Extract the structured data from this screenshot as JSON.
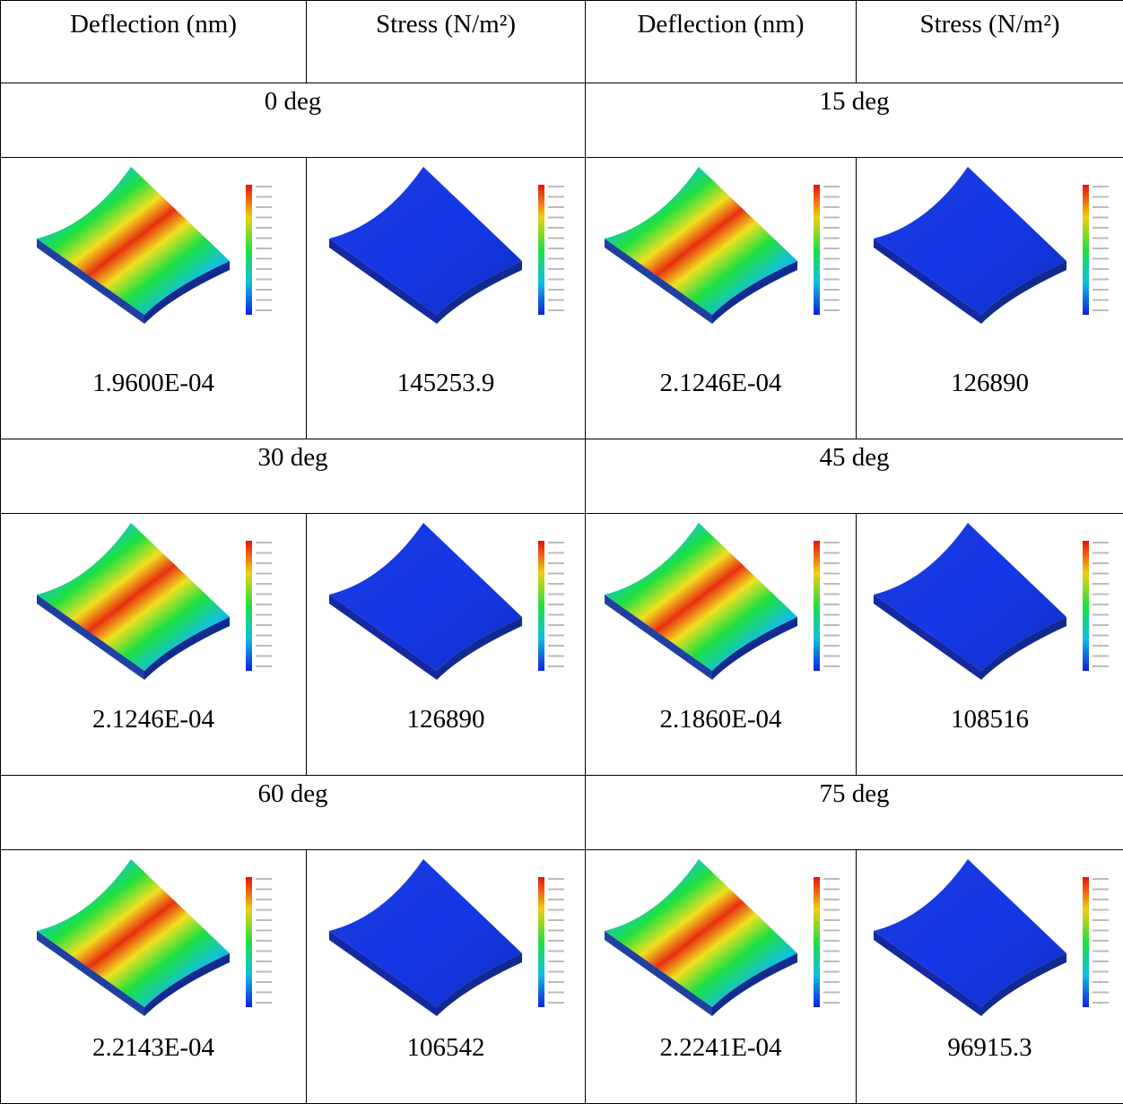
{
  "header": [
    "Deflection  (nm)",
    "Stress (N/m²)",
    "Deflection  (nm)",
    "Stress (N/m²)"
  ],
  "sections": [
    {
      "angles": [
        "0 deg",
        "15 deg"
      ],
      "values": [
        "1.9600E-04",
        "145253.9",
        "2.1246E-04",
        "126890"
      ]
    },
    {
      "angles": [
        "30 deg",
        "45 deg"
      ],
      "values": [
        "2.1246E-04",
        "126890",
        "2.1860E-04",
        "108516"
      ]
    },
    {
      "angles": [
        "60 deg",
        "75 deg"
      ],
      "values": [
        "2.2143E-04",
        "106542",
        "2.2241E-04",
        "96915.3"
      ]
    }
  ]
}
